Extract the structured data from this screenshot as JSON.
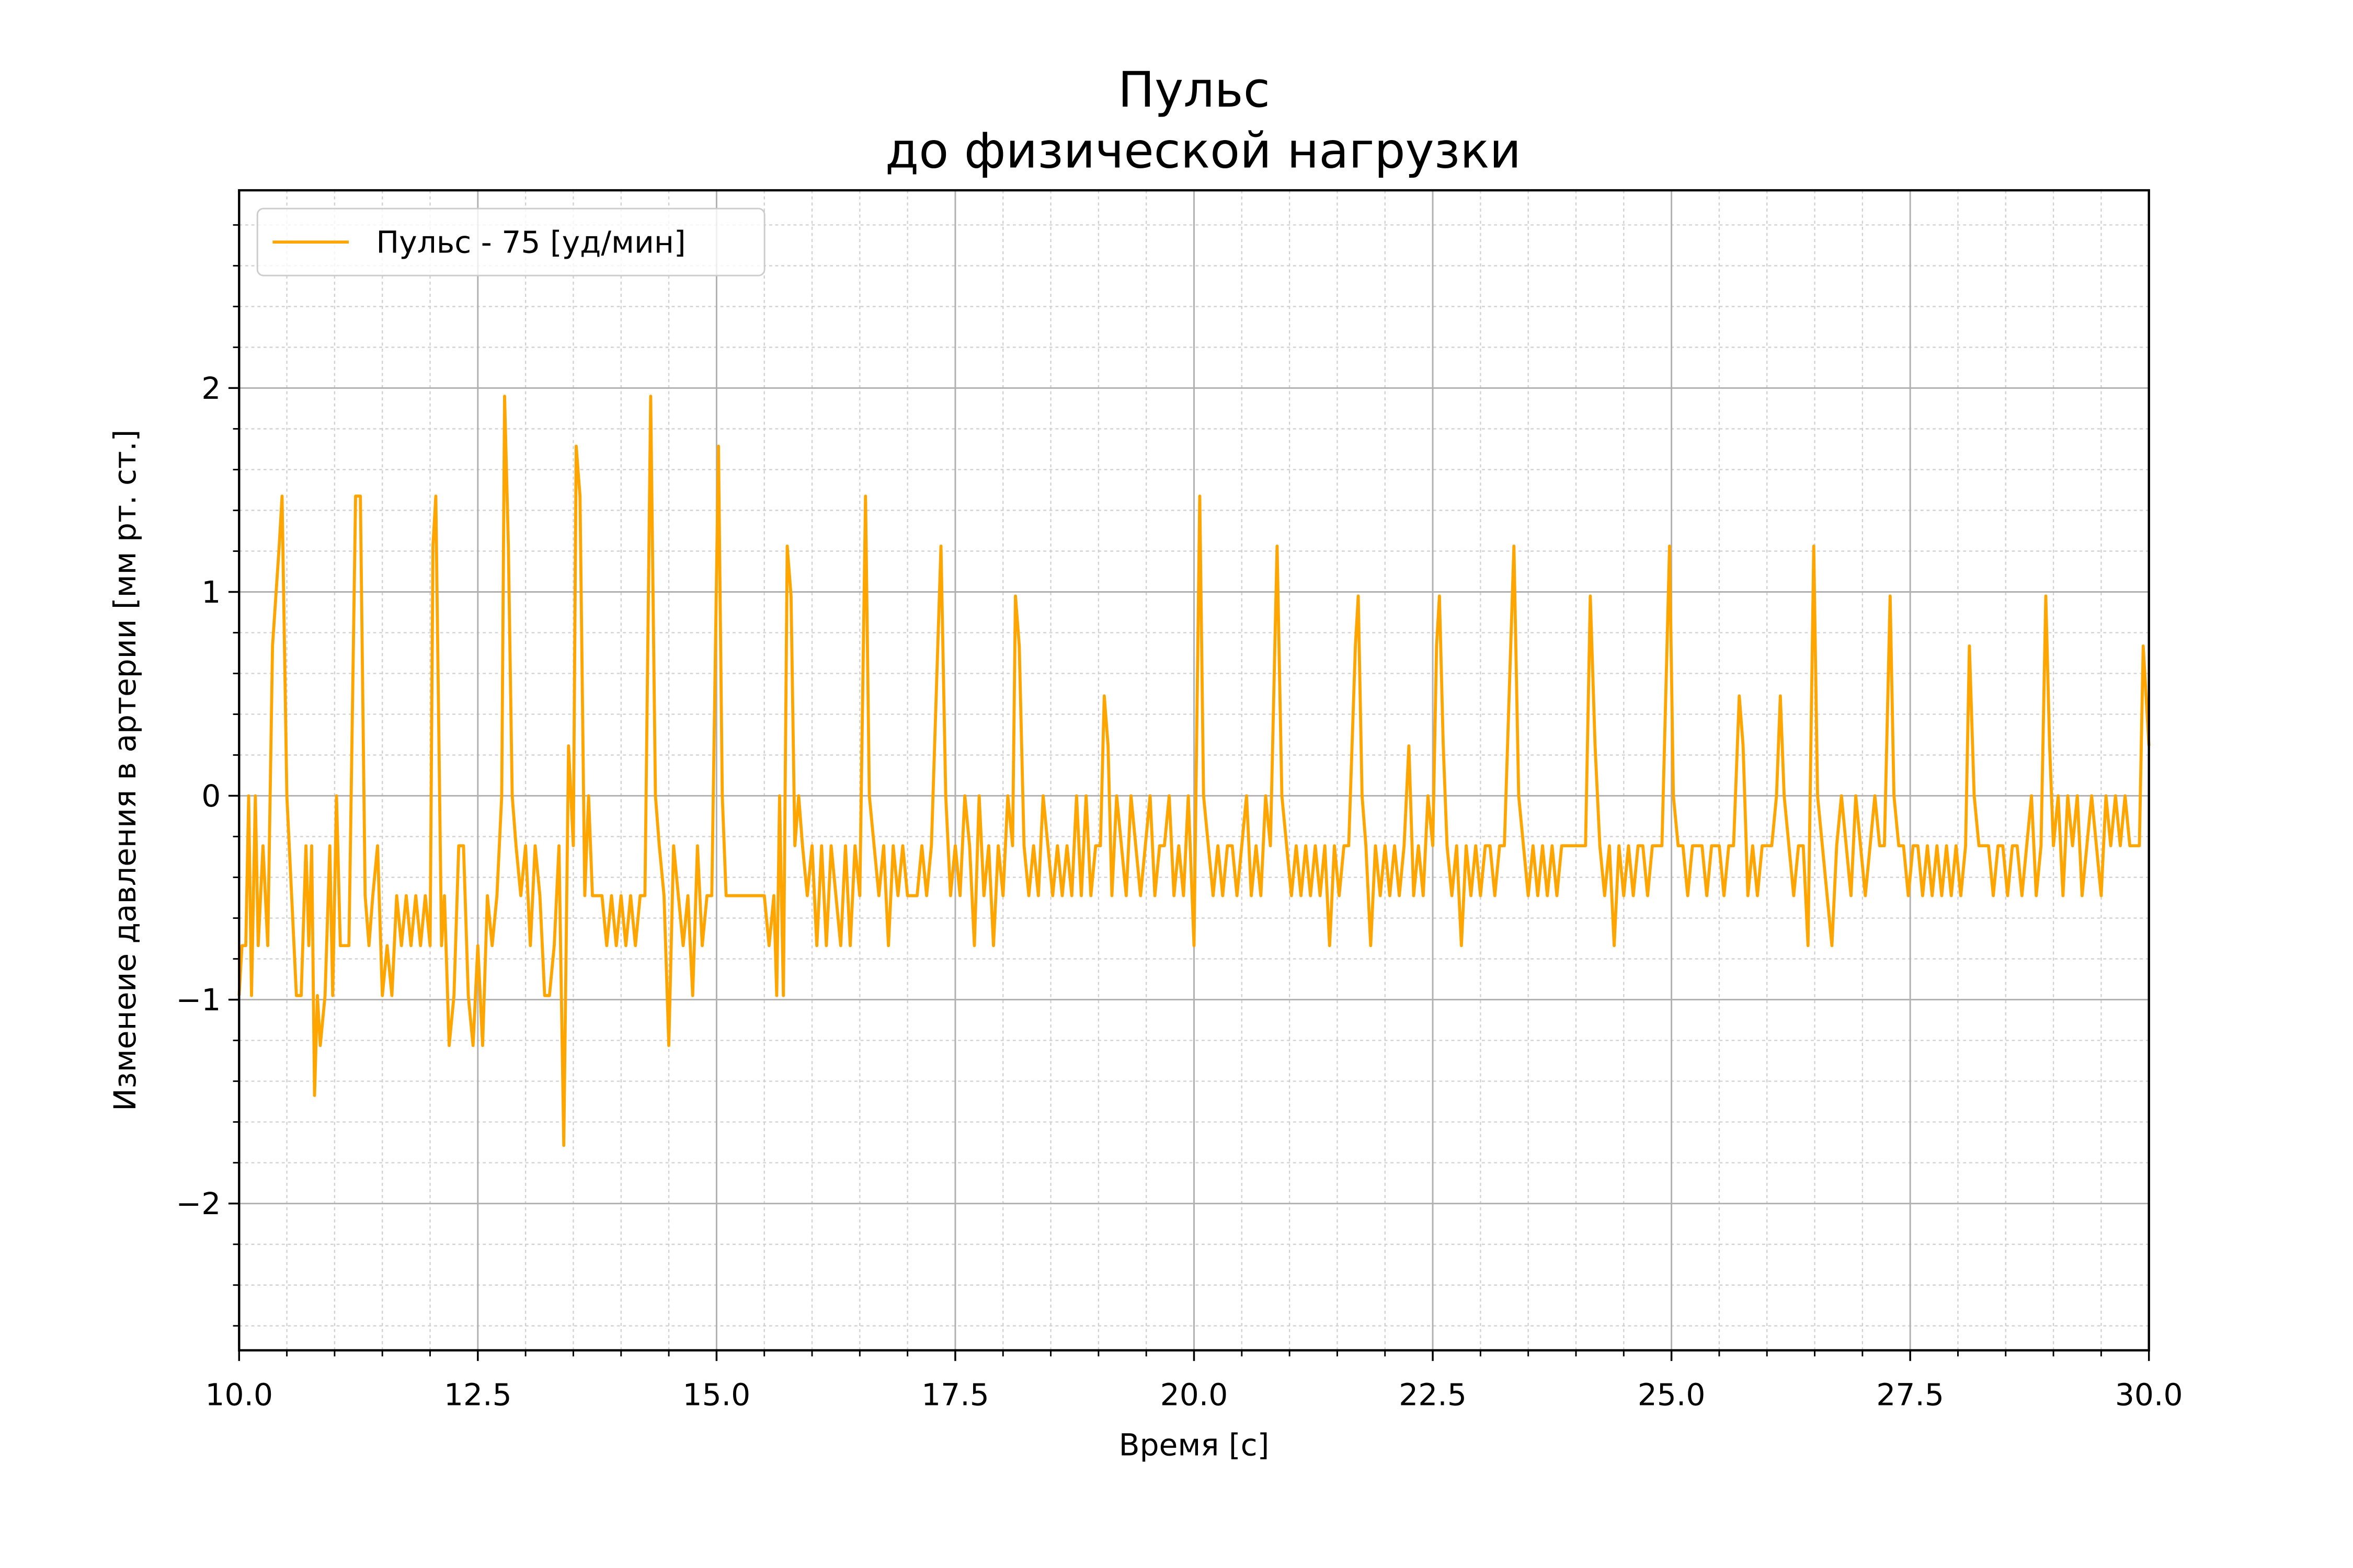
{
  "chart_data": {
    "type": "line",
    "title": [
      "Пульс",
      "до физической нагрузки"
    ],
    "xlabel": "Время [с]",
    "ylabel": "Изменеие давления в артерии [мм рт. ст.]",
    "xlim": [
      10,
      30
    ],
    "ylim": [
      -2.72,
      2.97
    ],
    "xticks": [
      {
        "value": 10,
        "label": "10.0"
      },
      12.5,
      {
        "value": 15,
        "label": "15.0"
      },
      17.5,
      {
        "value": 20,
        "label": "20.0"
      },
      22.5,
      {
        "value": 25,
        "label": "25.0"
      },
      27.5,
      {
        "value": 30,
        "label": "30.0"
      }
    ],
    "yticks": [
      {
        "value": -2,
        "label": "−2"
      },
      {
        "value": -1,
        "label": "−1"
      },
      0,
      1,
      2
    ],
    "xminorticks": [
      10.5,
      11,
      11.5,
      12,
      13,
      13.5,
      14,
      14.5,
      15.5,
      16,
      16.5,
      17,
      18,
      18.5,
      19,
      19.5,
      20.5,
      21,
      21.5,
      22,
      23,
      23.5,
      24,
      24.5,
      25.5,
      26,
      26.5,
      27,
      28,
      28.5,
      29,
      29.5
    ],
    "yminorticks": [
      -2.6,
      -2.4,
      -2.2,
      -1.8,
      -1.6,
      -1.4,
      -1.2,
      -0.8,
      -0.6,
      -0.4,
      -0.2,
      0.2,
      0.4,
      0.6,
      0.8,
      1.2,
      1.4,
      1.6,
      1.8,
      2.2,
      2.4,
      2.6,
      2.8
    ],
    "grid": true,
    "minor_grid": true,
    "legend": "upper left",
    "x": [
      10.0,
      10.03,
      10.07,
      10.1,
      10.13,
      10.17,
      10.2,
      10.25,
      10.3,
      10.35,
      10.42,
      10.45,
      10.5,
      10.55,
      10.6,
      10.65,
      10.7,
      10.73,
      10.76,
      10.79,
      10.82,
      10.85,
      10.9,
      10.95,
      10.98,
      11.02,
      11.06,
      11.15,
      11.22,
      11.27,
      11.32,
      11.36,
      11.4,
      11.45,
      11.5,
      11.55,
      11.6,
      11.65,
      11.7,
      11.75,
      11.8,
      11.85,
      11.9,
      11.95,
      12.0,
      12.03,
      12.06,
      12.12,
      12.15,
      12.2,
      12.25,
      12.3,
      12.35,
      12.4,
      12.45,
      12.5,
      12.55,
      12.6,
      12.65,
      12.7,
      12.75,
      12.78,
      12.82,
      12.86,
      12.9,
      12.95,
      13.0,
      13.05,
      13.1,
      13.15,
      13.2,
      13.25,
      13.3,
      13.35,
      13.4,
      13.45,
      13.5,
      13.53,
      13.57,
      13.62,
      13.66,
      13.7,
      13.8,
      13.85,
      13.9,
      13.95,
      14.0,
      14.05,
      14.1,
      14.15,
      14.2,
      14.25,
      14.31,
      14.36,
      14.4,
      14.45,
      14.5,
      14.55,
      14.6,
      14.65,
      14.7,
      14.75,
      14.8,
      14.85,
      14.9,
      14.95,
      15.02,
      15.06,
      15.1,
      15.5,
      15.55,
      15.6,
      15.63,
      15.66,
      15.7,
      15.74,
      15.78,
      15.82,
      15.86,
      15.9,
      15.95,
      16.0,
      16.05,
      16.1,
      16.15,
      16.2,
      16.25,
      16.3,
      16.35,
      16.4,
      16.45,
      16.5,
      16.56,
      16.6,
      16.65,
      16.7,
      16.75,
      16.8,
      16.85,
      16.9,
      16.95,
      17.0,
      17.1,
      17.15,
      17.2,
      17.25,
      17.35,
      17.4,
      17.45,
      17.5,
      17.55,
      17.6,
      17.65,
      17.7,
      17.75,
      17.8,
      17.85,
      17.9,
      17.95,
      18.0,
      18.05,
      18.1,
      18.13,
      18.17,
      18.22,
      18.27,
      18.32,
      18.37,
      18.42,
      18.47,
      18.52,
      18.57,
      18.62,
      18.67,
      18.72,
      18.77,
      18.82,
      18.87,
      18.92,
      18.97,
      19.02,
      19.06,
      19.1,
      19.14,
      19.19,
      19.24,
      19.29,
      19.34,
      19.39,
      19.44,
      19.49,
      19.54,
      19.59,
      19.64,
      19.69,
      19.74,
      19.79,
      19.84,
      19.89,
      19.94,
      20.0,
      20.06,
      20.1,
      20.15,
      20.2,
      20.25,
      20.3,
      20.35,
      20.4,
      20.45,
      20.5,
      20.55,
      20.6,
      20.65,
      20.7,
      20.75,
      20.8,
      20.87,
      20.92,
      20.97,
      21.02,
      21.07,
      21.12,
      21.17,
      21.22,
      21.27,
      21.32,
      21.37,
      21.42,
      21.47,
      21.52,
      21.57,
      21.62,
      21.69,
      21.72,
      21.76,
      21.8,
      21.85,
      21.9,
      21.95,
      22.0,
      22.05,
      22.1,
      22.15,
      22.2,
      22.25,
      22.3,
      22.35,
      22.4,
      22.45,
      22.5,
      22.54,
      22.57,
      22.61,
      22.65,
      22.7,
      22.75,
      22.8,
      22.85,
      22.9,
      22.95,
      23.0,
      23.05,
      23.1,
      23.15,
      23.2,
      23.25,
      23.35,
      23.4,
      23.45,
      23.5,
      23.55,
      23.6,
      23.65,
      23.7,
      23.75,
      23.8,
      23.85,
      23.9,
      24.0,
      24.1,
      24.15,
      24.2,
      24.25,
      24.3,
      24.35,
      24.4,
      24.45,
      24.5,
      24.55,
      24.6,
      24.65,
      24.7,
      24.75,
      24.8,
      24.9,
      24.98,
      25.02,
      25.07,
      25.12,
      25.17,
      25.22,
      25.32,
      25.37,
      25.42,
      25.5,
      25.55,
      25.6,
      25.65,
      25.71,
      25.75,
      25.8,
      25.85,
      25.9,
      25.95,
      26.0,
      26.05,
      26.1,
      26.14,
      26.18,
      26.23,
      26.28,
      26.33,
      26.38,
      26.43,
      26.49,
      26.53,
      26.58,
      26.63,
      26.68,
      26.73,
      26.78,
      26.83,
      26.88,
      26.93,
      26.98,
      27.03,
      27.08,
      27.13,
      27.18,
      27.23,
      27.29,
      27.33,
      27.38,
      27.43,
      27.48,
      27.53,
      27.58,
      27.63,
      27.68,
      27.73,
      27.78,
      27.83,
      27.88,
      27.93,
      27.98,
      28.03,
      28.08,
      28.12,
      28.17,
      28.22,
      28.27,
      28.32,
      28.37,
      28.42,
      28.47,
      28.52,
      28.57,
      28.62,
      28.67,
      28.72,
      28.77,
      28.82,
      28.87,
      28.92,
      28.96,
      29.0,
      29.05,
      29.1,
      29.15,
      29.2,
      29.25,
      29.3,
      29.35,
      29.4,
      29.45,
      29.5,
      29.55,
      29.6,
      29.65,
      29.7,
      29.75,
      29.8,
      29.85,
      29.9,
      29.94,
      30.0
    ],
    "series": [
      {
        "name": "Пульс - 75 [уд/мин]",
        "color": "#ffa500",
        "values": [
          -0.98,
          -0.735,
          -0.735,
          0,
          -0.98,
          0,
          -0.735,
          -0.245,
          -0.735,
          0.735,
          1.225,
          1.47,
          0,
          -0.49,
          -0.98,
          -0.98,
          -0.245,
          -0.735,
          -0.245,
          -1.47,
          -0.98,
          -1.225,
          -0.98,
          -0.245,
          -0.98,
          0,
          -0.735,
          -0.735,
          1.47,
          1.47,
          -0.49,
          -0.735,
          -0.49,
          -0.245,
          -0.98,
          -0.735,
          -0.98,
          -0.49,
          -0.735,
          -0.49,
          -0.735,
          -0.49,
          -0.735,
          -0.49,
          -0.735,
          1.225,
          1.47,
          -0.735,
          -0.49,
          -1.225,
          -0.98,
          -0.245,
          -0.245,
          -0.98,
          -1.225,
          -0.735,
          -1.225,
          -0.49,
          -0.735,
          -0.49,
          0,
          1.96,
          1.225,
          0,
          -0.245,
          -0.49,
          -0.245,
          -0.735,
          -0.245,
          -0.49,
          -0.98,
          -0.98,
          -0.735,
          -0.245,
          -1.715,
          0.245,
          -0.245,
          1.715,
          1.47,
          -0.49,
          0,
          -0.49,
          -0.49,
          -0.735,
          -0.49,
          -0.735,
          -0.49,
          -0.735,
          -0.49,
          -0.735,
          -0.49,
          -0.49,
          1.96,
          0,
          -0.245,
          -0.49,
          -1.225,
          -0.245,
          -0.49,
          -0.735,
          -0.49,
          -0.98,
          -0.245,
          -0.735,
          -0.49,
          -0.49,
          1.715,
          0,
          -0.49,
          -0.49,
          -0.735,
          -0.49,
          -0.98,
          0,
          -0.98,
          1.225,
          0.98,
          -0.245,
          0,
          -0.245,
          -0.49,
          -0.245,
          -0.735,
          -0.245,
          -0.735,
          -0.245,
          -0.49,
          -0.735,
          -0.245,
          -0.735,
          -0.245,
          -0.49,
          1.47,
          0,
          -0.245,
          -0.49,
          -0.245,
          -0.735,
          -0.245,
          -0.49,
          -0.245,
          -0.49,
          -0.49,
          -0.245,
          -0.49,
          -0.245,
          1.225,
          0,
          -0.49,
          -0.245,
          -0.49,
          0,
          -0.245,
          -0.735,
          0,
          -0.49,
          -0.245,
          -0.735,
          -0.245,
          -0.49,
          0,
          -0.245,
          0.98,
          0.735,
          -0.245,
          -0.49,
          -0.245,
          -0.49,
          0,
          -0.245,
          -0.49,
          -0.245,
          -0.49,
          -0.245,
          -0.49,
          0,
          -0.49,
          0,
          -0.49,
          -0.245,
          -0.245,
          0.49,
          0.245,
          -0.49,
          0,
          -0.245,
          -0.49,
          0,
          -0.245,
          -0.49,
          -0.245,
          0,
          -0.49,
          -0.245,
          -0.245,
          0,
          -0.49,
          -0.245,
          -0.49,
          0,
          -0.735,
          1.47,
          0,
          -0.245,
          -0.49,
          -0.245,
          -0.49,
          -0.245,
          -0.245,
          -0.49,
          -0.245,
          0,
          -0.49,
          -0.245,
          -0.49,
          0,
          -0.245,
          1.225,
          0,
          -0.245,
          -0.49,
          -0.245,
          -0.49,
          -0.245,
          -0.49,
          -0.245,
          -0.49,
          -0.245,
          -0.735,
          -0.245,
          -0.49,
          -0.245,
          -0.245,
          0.735,
          0.98,
          0,
          -0.245,
          -0.735,
          -0.245,
          -0.49,
          -0.245,
          -0.49,
          -0.245,
          -0.49,
          -0.245,
          0.245,
          -0.49,
          -0.245,
          -0.49,
          0,
          -0.245,
          0.735,
          0.98,
          0.245,
          -0.245,
          -0.49,
          -0.245,
          -0.735,
          -0.245,
          -0.49,
          -0.245,
          -0.49,
          -0.245,
          -0.245,
          -0.49,
          -0.245,
          -0.245,
          1.225,
          0,
          -0.245,
          -0.49,
          -0.245,
          -0.49,
          -0.245,
          -0.49,
          -0.245,
          -0.49,
          -0.245,
          -0.245,
          -0.245,
          -0.245,
          0.98,
          0.245,
          -0.245,
          -0.49,
          -0.245,
          -0.735,
          -0.245,
          -0.49,
          -0.245,
          -0.49,
          -0.245,
          -0.245,
          -0.49,
          -0.245,
          -0.245,
          1.225,
          0,
          -0.245,
          -0.245,
          -0.49,
          -0.245,
          -0.245,
          -0.49,
          -0.245,
          -0.245,
          -0.49,
          -0.245,
          -0.245,
          0.49,
          0.245,
          -0.49,
          -0.245,
          -0.49,
          -0.245,
          -0.245,
          -0.245,
          0,
          0.49,
          0,
          -0.245,
          -0.49,
          -0.245,
          -0.245,
          -0.735,
          1.225,
          0,
          -0.245,
          -0.49,
          -0.735,
          -0.245,
          0,
          -0.245,
          -0.49,
          0,
          -0.245,
          -0.49,
          -0.245,
          0,
          -0.245,
          -0.245,
          0.98,
          0,
          -0.245,
          -0.245,
          -0.49,
          -0.245,
          -0.245,
          -0.49,
          -0.245,
          -0.49,
          -0.245,
          -0.49,
          -0.245,
          -0.49,
          -0.245,
          -0.49,
          -0.245,
          0.735,
          0,
          -0.245,
          -0.245,
          -0.245,
          -0.49,
          -0.245,
          -0.245,
          -0.49,
          -0.245,
          -0.245,
          -0.49,
          -0.245,
          0,
          -0.49,
          -0.245,
          0.98,
          0.245,
          -0.245,
          0,
          -0.49,
          0,
          -0.245,
          0,
          -0.49,
          -0.245,
          0,
          -0.245,
          -0.49,
          0,
          -0.245,
          0,
          -0.245,
          0,
          -0.245,
          -0.245,
          -0.245,
          0.735,
          0.245
        ]
      }
    ]
  }
}
